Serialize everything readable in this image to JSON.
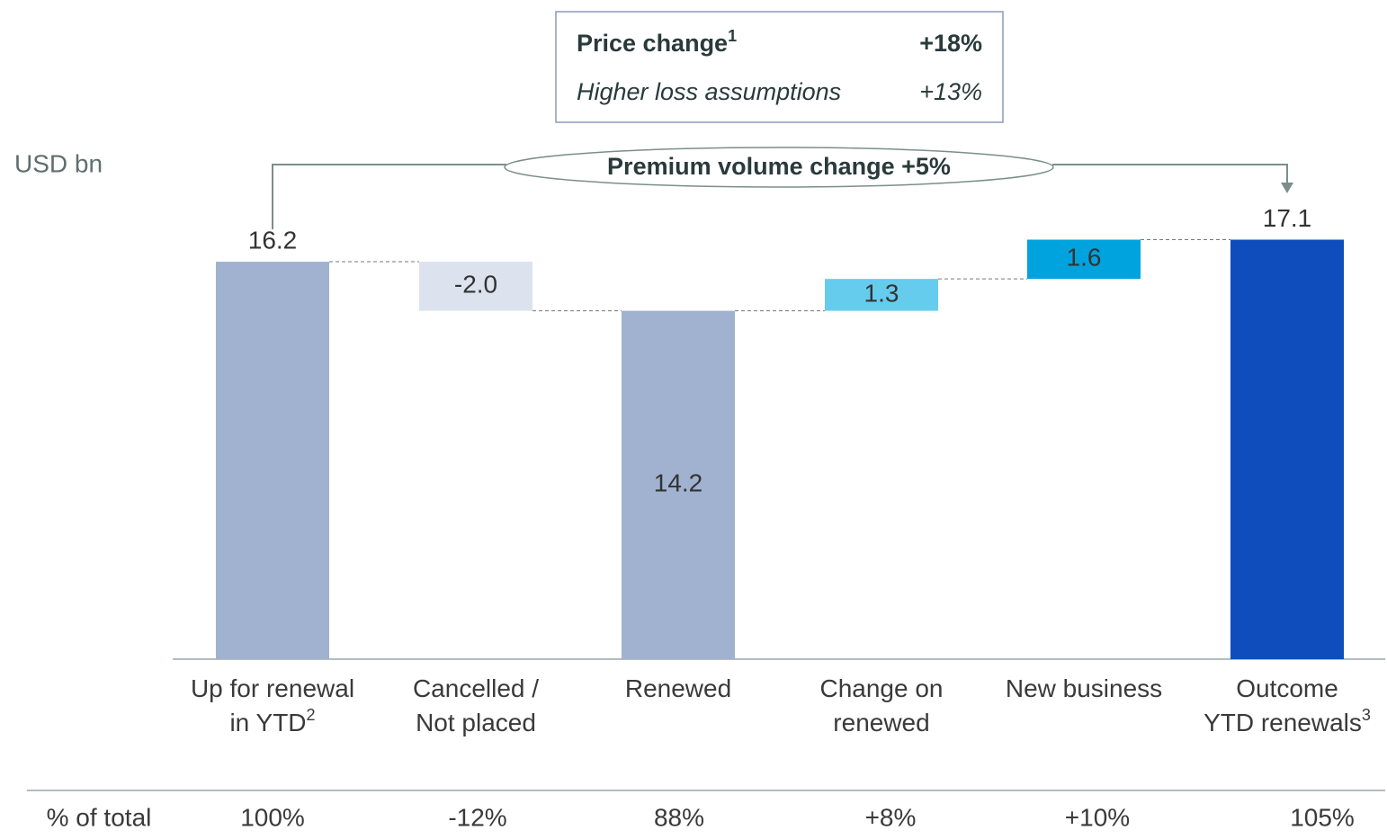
{
  "chart_data": {
    "type": "waterfall",
    "unit_label": "USD bn",
    "categories": [
      [
        "Up for renewal",
        "in YTD"
      ],
      [
        "Cancelled /",
        "Not placed"
      ],
      [
        "Renewed"
      ],
      [
        "Change on",
        "renewed"
      ],
      [
        "New business"
      ],
      [
        "Outcome",
        "YTD renewals"
      ]
    ],
    "category_notes": [
      "2",
      null,
      null,
      null,
      null,
      "3"
    ],
    "values": [
      16.2,
      -2.0,
      14.2,
      1.3,
      1.6,
      17.1
    ],
    "value_labels": [
      "16.2",
      "-2.0",
      "14.2",
      "1.3",
      "1.6",
      "17.1"
    ],
    "totals": [
      true,
      false,
      true,
      false,
      false,
      true
    ],
    "label_positions": [
      "above",
      "inside",
      "inside",
      "inside",
      "inside",
      "above"
    ],
    "colors": [
      "#a0b2cf",
      "#dde3ee",
      "#a0b2cf",
      "#66ccee",
      "#00a3dd",
      "#0f4cbc"
    ],
    "annotation": "Premium volume change +5%",
    "info_box": [
      {
        "label": "Price change",
        "note": "1",
        "value": "+18%",
        "style": "bold"
      },
      {
        "label": "Higher loss assumptions",
        "value": "+13%",
        "style": "italic"
      }
    ],
    "table": {
      "label": "% of total",
      "values": [
        "100%",
        "-12%",
        "88%",
        "+8%",
        "+10%",
        "105%"
      ]
    }
  }
}
